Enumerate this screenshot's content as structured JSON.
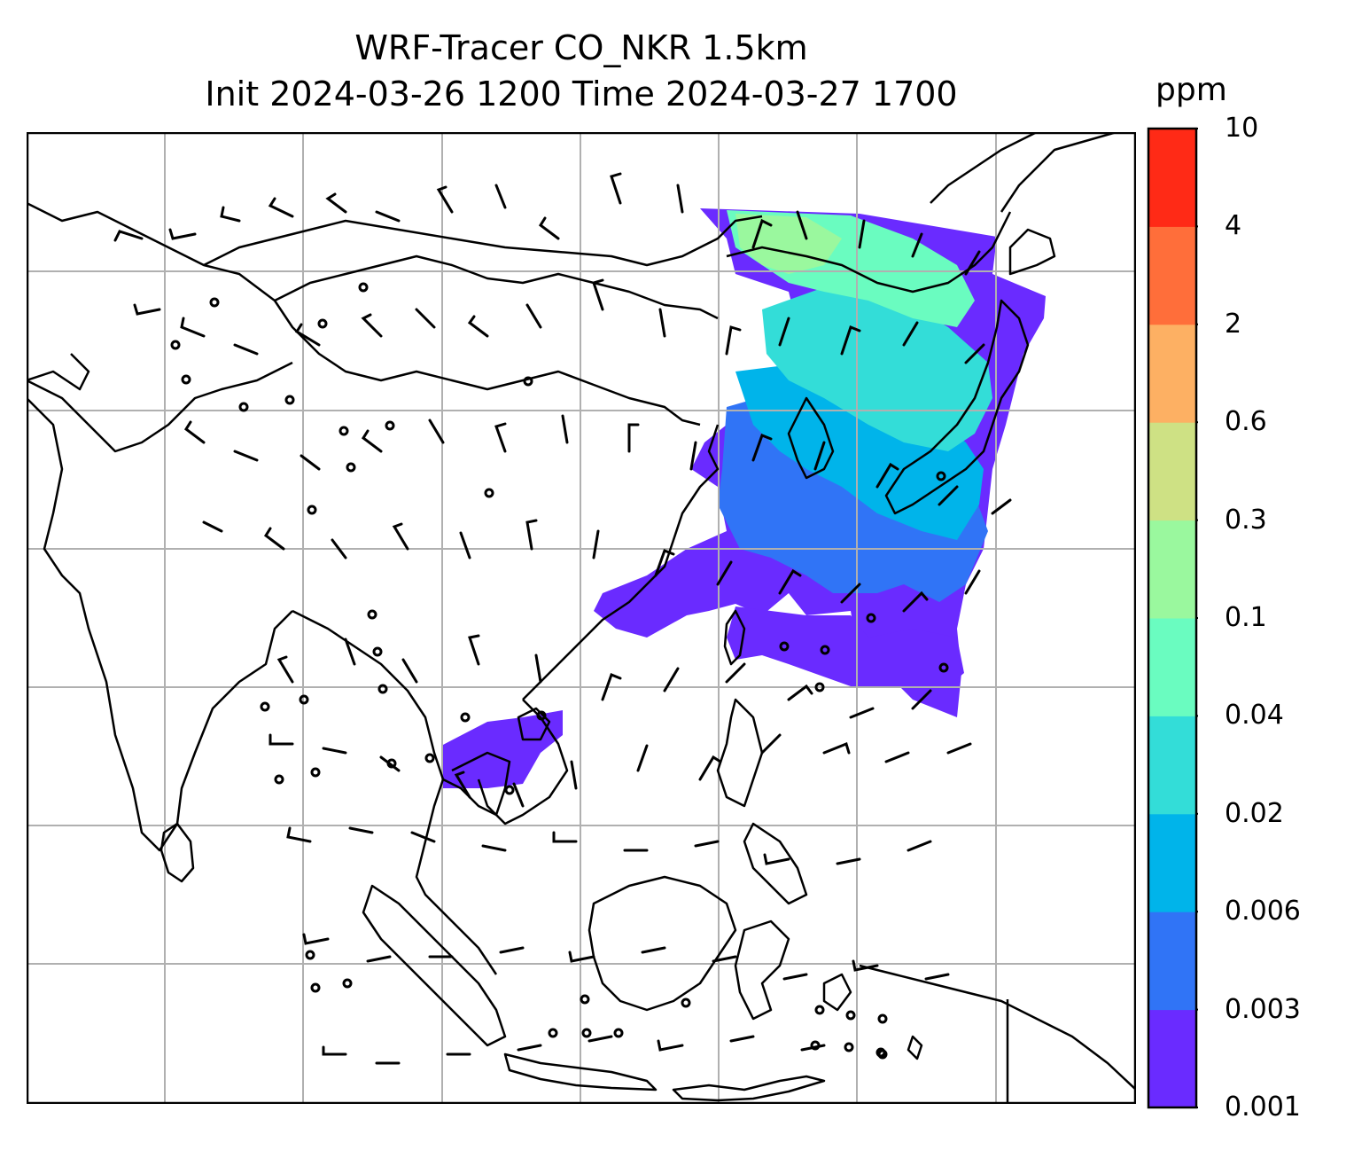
{
  "title": {
    "line1": "WRF-Tracer CO_NKR 1.5km",
    "line2": "Init 2024-03-26 1200 Time 2024-03-27 1700"
  },
  "colorbar": {
    "unit": "ppm",
    "levels": [
      "0.001",
      "0.003",
      "0.006",
      "0.02",
      "0.04",
      "0.1",
      "0.3",
      "0.6",
      "2",
      "4",
      "10"
    ],
    "colors": [
      "#6a2bff",
      "#3074f6",
      "#00b4ea",
      "#33ddd8",
      "#6afcc0",
      "#9af89e",
      "#cee184",
      "#fdb063",
      "#ff6e3a",
      "#ff2a16"
    ]
  },
  "map": {
    "coastline_color": "#000000",
    "gridline_color": "#b0b0b0",
    "barb_color": "#000000"
  }
}
